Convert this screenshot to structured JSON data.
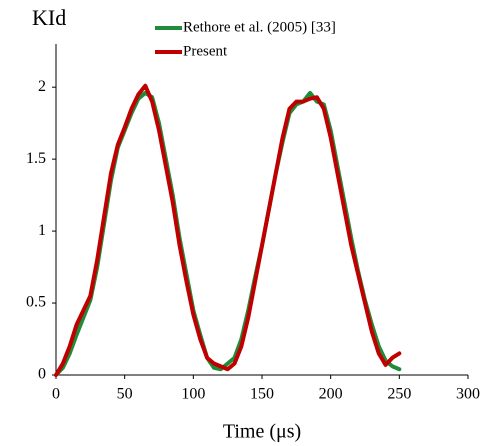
{
  "chart_data": {
    "type": "line",
    "y_label": "KId",
    "x_label": "Time (μs)",
    "x": [
      0,
      5,
      10,
      15,
      20,
      25,
      30,
      35,
      40,
      45,
      50,
      55,
      60,
      65,
      70,
      75,
      80,
      85,
      90,
      95,
      100,
      105,
      110,
      115,
      120,
      125,
      130,
      135,
      140,
      145,
      150,
      155,
      160,
      165,
      170,
      175,
      180,
      185,
      190,
      195,
      200,
      205,
      210,
      215,
      220,
      225,
      230,
      235,
      240,
      245,
      250
    ],
    "series": [
      {
        "name": "Rethore et al. (2005) [33]",
        "color": "#1e8c3a",
        "values": [
          0,
          0.05,
          0.15,
          0.28,
          0.4,
          0.52,
          0.75,
          1.05,
          1.35,
          1.58,
          1.7,
          1.82,
          1.92,
          1.96,
          1.93,
          1.75,
          1.5,
          1.25,
          0.95,
          0.7,
          0.45,
          0.28,
          0.12,
          0.05,
          0.04,
          0.08,
          0.12,
          0.25,
          0.45,
          0.68,
          0.9,
          1.15,
          1.4,
          1.62,
          1.82,
          1.88,
          1.9,
          1.96,
          1.9,
          1.88,
          1.7,
          1.45,
          1.2,
          0.95,
          0.72,
          0.52,
          0.35,
          0.2,
          0.1,
          0.06,
          0.04
        ]
      },
      {
        "name": "Present",
        "color": "#c00000",
        "values": [
          0,
          0.08,
          0.2,
          0.35,
          0.45,
          0.55,
          0.8,
          1.1,
          1.4,
          1.6,
          1.72,
          1.85,
          1.95,
          2.01,
          1.9,
          1.7,
          1.45,
          1.2,
          0.9,
          0.65,
          0.42,
          0.25,
          0.12,
          0.08,
          0.06,
          0.04,
          0.08,
          0.2,
          0.4,
          0.65,
          0.9,
          1.15,
          1.4,
          1.65,
          1.85,
          1.9,
          1.9,
          1.92,
          1.93,
          1.85,
          1.65,
          1.4,
          1.15,
          0.9,
          0.7,
          0.5,
          0.3,
          0.15,
          0.07,
          0.12,
          0.15
        ]
      }
    ],
    "xlim": [
      0,
      300
    ],
    "xticks": [
      0,
      50,
      100,
      150,
      200,
      250,
      300
    ],
    "ylim": [
      0,
      2.3
    ],
    "yticks": [
      0,
      0.5,
      1,
      1.5,
      2
    ],
    "grid": false
  }
}
